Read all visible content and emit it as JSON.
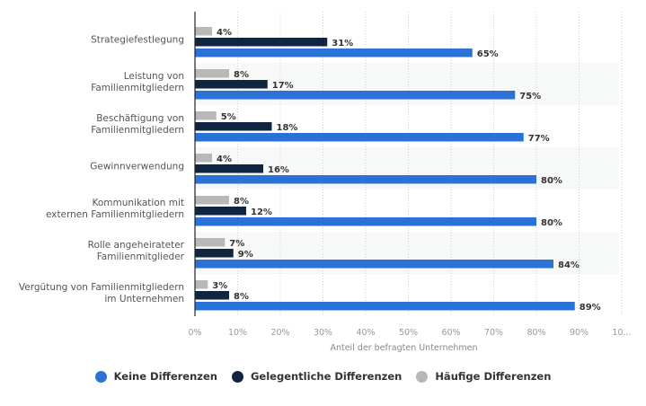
{
  "chart_data": {
    "type": "bar",
    "orientation": "horizontal",
    "title": "",
    "xlabel": "Anteil der befragten Unternehmen",
    "ylabel": "",
    "xlim": [
      0,
      100
    ],
    "grid": true,
    "legend_position": "bottom",
    "tick_labels": [
      "0%",
      "10%",
      "20%",
      "30%",
      "40%",
      "50%",
      "60%",
      "70%",
      "80%",
      "90%",
      "10..."
    ],
    "categories": [
      [
        "Strategiefestlegung"
      ],
      [
        "Leistung von",
        "Familienmitgliedern"
      ],
      [
        "Beschäftigung von",
        "Familienmitgliedern"
      ],
      [
        "Gewinnverwendung"
      ],
      [
        "Kommunikation mit",
        "externen Familienmitgliedern"
      ],
      [
        "Rolle angeheirateter",
        "Familienmitglieder"
      ],
      [
        "Vergütung von Familienmitgliedern",
        "im Unternehmen"
      ]
    ],
    "series": [
      {
        "name": "Häufige Differenzen",
        "color": "#b8b8b8",
        "values": [
          4,
          8,
          5,
          4,
          8,
          7,
          3
        ],
        "labels": [
          "4%",
          "8%",
          "5%",
          "4%",
          "8%",
          "7%",
          "3%"
        ]
      },
      {
        "name": "Gelegentliche Differenzen",
        "color": "#0f2540",
        "values": [
          31,
          17,
          18,
          16,
          12,
          9,
          8
        ],
        "labels": [
          "31%",
          "17%",
          "18%",
          "16%",
          "12%",
          "9%",
          "8%"
        ]
      },
      {
        "name": "Keine Differenzen",
        "color": "#2a72d6",
        "values": [
          65,
          75,
          77,
          80,
          80,
          84,
          89
        ],
        "labels": [
          "65%",
          "75%",
          "77%",
          "80%",
          "80%",
          "84%",
          "89%"
        ]
      }
    ]
  },
  "legend": [
    {
      "label": "Keine Differenzen",
      "color": "#2a72d6"
    },
    {
      "label": "Gelegentliche Differenzen",
      "color": "#0f2540"
    },
    {
      "label": "Häufige Differenzen",
      "color": "#b8b8b8"
    }
  ]
}
